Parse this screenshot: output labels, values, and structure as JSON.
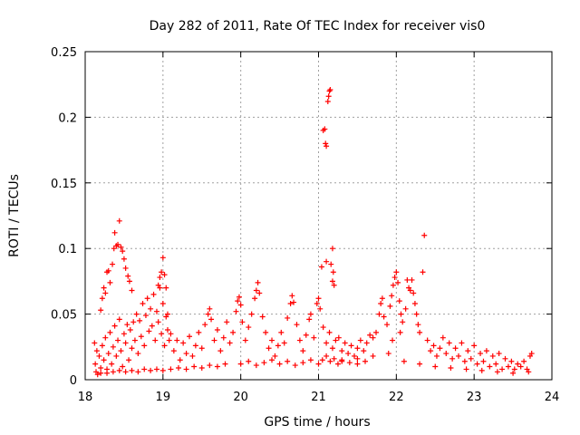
{
  "chart_data": {
    "type": "scatter",
    "title": "Day 282 of 2011, Rate Of TEC Index for receiver vis0",
    "xlabel": "GPS time / hours",
    "ylabel": "ROTI / TECUs",
    "xlim": [
      18,
      24
    ],
    "ylim": [
      0,
      0.25
    ],
    "grid": true,
    "marker": "+",
    "colors": {
      "points": "#ff0000",
      "grid": "#a0a0a0",
      "axis": "#000000"
    },
    "x_ticks": [
      "18",
      "19",
      "20",
      "21",
      "22",
      "23",
      "24"
    ],
    "y_ticks": [
      "0",
      "0.05",
      "0.1",
      "0.15",
      "0.2",
      "0.25"
    ],
    "series": [
      {
        "name": "vis0",
        "points": [
          [
            18.12,
            0.028
          ],
          [
            18.13,
            0.012
          ],
          [
            18.15,
            0.022
          ],
          [
            18.16,
            0.004
          ],
          [
            18.18,
            0.018
          ],
          [
            18.2,
            0.009
          ],
          [
            18.22,
            0.026
          ],
          [
            18.24,
            0.015
          ],
          [
            18.26,
            0.032
          ],
          [
            18.28,
            0.008
          ],
          [
            18.3,
            0.02
          ],
          [
            18.32,
            0.036
          ],
          [
            18.34,
            0.012
          ],
          [
            18.36,
            0.025
          ],
          [
            18.38,
            0.041
          ],
          [
            18.4,
            0.018
          ],
          [
            18.42,
            0.03
          ],
          [
            18.44,
            0.046
          ],
          [
            18.46,
            0.022
          ],
          [
            18.48,
            0.01
          ],
          [
            18.5,
            0.035
          ],
          [
            18.52,
            0.028
          ],
          [
            18.54,
            0.042
          ],
          [
            18.56,
            0.015
          ],
          [
            18.58,
            0.038
          ],
          [
            18.6,
            0.024
          ],
          [
            18.62,
            0.044
          ],
          [
            18.64,
            0.03
          ],
          [
            18.66,
            0.05
          ],
          [
            18.68,
            0.02
          ],
          [
            18.7,
            0.045
          ],
          [
            18.72,
            0.033
          ],
          [
            18.74,
            0.058
          ],
          [
            18.76,
            0.026
          ],
          [
            18.78,
            0.049
          ],
          [
            18.8,
            0.062
          ],
          [
            18.82,
            0.037
          ],
          [
            18.84,
            0.054
          ],
          [
            18.86,
            0.041
          ],
          [
            18.88,
            0.065
          ],
          [
            18.9,
            0.03
          ],
          [
            18.92,
            0.052
          ],
          [
            18.94,
            0.044
          ],
          [
            18.96,
            0.07
          ],
          [
            18.98,
            0.035
          ],
          [
            19.0,
            0.058
          ],
          [
            19.02,
            0.026
          ],
          [
            19.04,
            0.048
          ],
          [
            19.06,
            0.038
          ],
          [
            19.08,
            0.03
          ],
          [
            18.2,
            0.053
          ],
          [
            18.22,
            0.062
          ],
          [
            18.24,
            0.07
          ],
          [
            18.26,
            0.066
          ],
          [
            18.28,
            0.082
          ],
          [
            18.3,
            0.083
          ],
          [
            18.32,
            0.074
          ],
          [
            18.35,
            0.088
          ],
          [
            18.37,
            0.1
          ],
          [
            18.38,
            0.112
          ],
          [
            18.4,
            0.102
          ],
          [
            18.42,
            0.103
          ],
          [
            18.44,
            0.121
          ],
          [
            18.46,
            0.101
          ],
          [
            18.48,
            0.098
          ],
          [
            18.5,
            0.092
          ],
          [
            18.52,
            0.085
          ],
          [
            18.55,
            0.079
          ],
          [
            18.57,
            0.075
          ],
          [
            18.6,
            0.068
          ],
          [
            18.94,
            0.072
          ],
          [
            18.96,
            0.078
          ],
          [
            18.98,
            0.082
          ],
          [
            19.0,
            0.093
          ],
          [
            19.02,
            0.08
          ],
          [
            19.04,
            0.07
          ],
          [
            19.06,
            0.05
          ],
          [
            18.14,
            0.006
          ],
          [
            18.2,
            0.005
          ],
          [
            18.28,
            0.005
          ],
          [
            18.36,
            0.006
          ],
          [
            18.44,
            0.007
          ],
          [
            18.52,
            0.006
          ],
          [
            18.6,
            0.007
          ],
          [
            18.68,
            0.006
          ],
          [
            18.76,
            0.008
          ],
          [
            18.84,
            0.007
          ],
          [
            18.92,
            0.008
          ],
          [
            19.0,
            0.007
          ],
          [
            19.1,
            0.008
          ],
          [
            19.2,
            0.009
          ],
          [
            19.3,
            0.008
          ],
          [
            19.4,
            0.01
          ],
          [
            19.5,
            0.009
          ],
          [
            19.6,
            0.011
          ],
          [
            19.7,
            0.01
          ],
          [
            19.8,
            0.012
          ],
          [
            19.1,
            0.035
          ],
          [
            19.14,
            0.022
          ],
          [
            19.18,
            0.03
          ],
          [
            19.22,
            0.015
          ],
          [
            19.26,
            0.028
          ],
          [
            19.3,
            0.02
          ],
          [
            19.34,
            0.033
          ],
          [
            19.38,
            0.018
          ],
          [
            19.42,
            0.026
          ],
          [
            19.46,
            0.036
          ],
          [
            19.5,
            0.024
          ],
          [
            19.54,
            0.042
          ],
          [
            19.58,
            0.05
          ],
          [
            19.6,
            0.054
          ],
          [
            19.62,
            0.046
          ],
          [
            19.66,
            0.03
          ],
          [
            19.7,
            0.038
          ],
          [
            19.74,
            0.022
          ],
          [
            19.78,
            0.032
          ],
          [
            19.82,
            0.044
          ],
          [
            19.86,
            0.028
          ],
          [
            19.9,
            0.036
          ],
          [
            19.94,
            0.052
          ],
          [
            19.96,
            0.06
          ],
          [
            19.98,
            0.063
          ],
          [
            20.0,
            0.057
          ],
          [
            20.02,
            0.044
          ],
          [
            20.06,
            0.03
          ],
          [
            20.1,
            0.04
          ],
          [
            20.14,
            0.05
          ],
          [
            20.18,
            0.062
          ],
          [
            20.2,
            0.068
          ],
          [
            20.22,
            0.074
          ],
          [
            20.24,
            0.066
          ],
          [
            20.28,
            0.048
          ],
          [
            20.32,
            0.036
          ],
          [
            20.36,
            0.024
          ],
          [
            20.4,
            0.03
          ],
          [
            20.44,
            0.018
          ],
          [
            20.48,
            0.026
          ],
          [
            20.52,
            0.036
          ],
          [
            20.56,
            0.028
          ],
          [
            20.6,
            0.047
          ],
          [
            20.64,
            0.058
          ],
          [
            20.66,
            0.064
          ],
          [
            20.68,
            0.059
          ],
          [
            20.72,
            0.042
          ],
          [
            20.76,
            0.03
          ],
          [
            20.8,
            0.022
          ],
          [
            20.84,
            0.034
          ],
          [
            20.88,
            0.046
          ],
          [
            20.9,
            0.05
          ],
          [
            20.94,
            0.032
          ],
          [
            20.98,
            0.058
          ],
          [
            21.0,
            0.062
          ],
          [
            21.02,
            0.054
          ],
          [
            21.06,
            0.04
          ],
          [
            21.1,
            0.028
          ],
          [
            21.14,
            0.036
          ],
          [
            21.18,
            0.024
          ],
          [
            21.22,
            0.03
          ],
          [
            21.26,
            0.032
          ],
          [
            21.3,
            0.022
          ],
          [
            21.34,
            0.028
          ],
          [
            21.38,
            0.02
          ],
          [
            21.42,
            0.026
          ],
          [
            21.46,
            0.018
          ],
          [
            21.5,
            0.024
          ],
          [
            21.54,
            0.03
          ],
          [
            21.58,
            0.022
          ],
          [
            21.62,
            0.028
          ],
          [
            21.66,
            0.034
          ],
          [
            21.7,
            0.032
          ],
          [
            21.74,
            0.036
          ],
          [
            21.78,
            0.05
          ],
          [
            21.8,
            0.058
          ],
          [
            21.82,
            0.062
          ],
          [
            21.84,
            0.048
          ],
          [
            21.88,
            0.042
          ],
          [
            21.92,
            0.056
          ],
          [
            21.94,
            0.064
          ],
          [
            21.96,
            0.072
          ],
          [
            21.98,
            0.078
          ],
          [
            22.0,
            0.082
          ],
          [
            22.02,
            0.074
          ],
          [
            22.04,
            0.06
          ],
          [
            22.06,
            0.05
          ],
          [
            22.08,
            0.044
          ],
          [
            22.12,
            0.054
          ],
          [
            22.16,
            0.07
          ],
          [
            22.18,
            0.068
          ],
          [
            22.2,
            0.076
          ],
          [
            22.22,
            0.066
          ],
          [
            22.24,
            0.058
          ],
          [
            22.26,
            0.05
          ],
          [
            22.28,
            0.042
          ],
          [
            22.3,
            0.036
          ],
          [
            22.34,
            0.082
          ],
          [
            22.36,
            0.11
          ],
          [
            22.14,
            0.076
          ],
          [
            21.06,
            0.19
          ],
          [
            21.08,
            0.191
          ],
          [
            21.09,
            0.18
          ],
          [
            21.1,
            0.178
          ],
          [
            21.12,
            0.212
          ],
          [
            21.13,
            0.216
          ],
          [
            21.14,
            0.22
          ],
          [
            21.15,
            0.221
          ],
          [
            21.04,
            0.086
          ],
          [
            21.16,
            0.088
          ],
          [
            21.18,
            0.1
          ],
          [
            21.19,
            0.082
          ],
          [
            21.2,
            0.072
          ],
          [
            21.18,
            0.075
          ],
          [
            21.1,
            0.09
          ],
          [
            21.0,
            0.012
          ],
          [
            21.05,
            0.015
          ],
          [
            21.1,
            0.018
          ],
          [
            21.15,
            0.014
          ],
          [
            21.2,
            0.016
          ],
          [
            21.25,
            0.012
          ],
          [
            21.3,
            0.014
          ],
          [
            21.4,
            0.013
          ],
          [
            21.5,
            0.012
          ],
          [
            21.6,
            0.014
          ],
          [
            20.0,
            0.012
          ],
          [
            20.1,
            0.014
          ],
          [
            20.2,
            0.011
          ],
          [
            20.3,
            0.013
          ],
          [
            20.4,
            0.015
          ],
          [
            20.5,
            0.012
          ],
          [
            20.6,
            0.014
          ],
          [
            20.7,
            0.011
          ],
          [
            20.8,
            0.013
          ],
          [
            20.9,
            0.015
          ],
          [
            22.4,
            0.03
          ],
          [
            22.44,
            0.022
          ],
          [
            22.48,
            0.026
          ],
          [
            22.52,
            0.018
          ],
          [
            22.56,
            0.024
          ],
          [
            22.6,
            0.032
          ],
          [
            22.64,
            0.02
          ],
          [
            22.68,
            0.028
          ],
          [
            22.72,
            0.016
          ],
          [
            22.76,
            0.024
          ],
          [
            22.8,
            0.018
          ],
          [
            22.84,
            0.028
          ],
          [
            22.88,
            0.014
          ],
          [
            22.92,
            0.022
          ],
          [
            22.96,
            0.016
          ],
          [
            23.0,
            0.026
          ],
          [
            23.04,
            0.012
          ],
          [
            23.08,
            0.02
          ],
          [
            23.12,
            0.014
          ],
          [
            23.16,
            0.022
          ],
          [
            23.2,
            0.01
          ],
          [
            23.24,
            0.018
          ],
          [
            23.28,
            0.012
          ],
          [
            23.32,
            0.02
          ],
          [
            23.36,
            0.008
          ],
          [
            23.4,
            0.016
          ],
          [
            23.44,
            0.01
          ],
          [
            23.48,
            0.014
          ],
          [
            23.52,
            0.008
          ],
          [
            23.56,
            0.012
          ],
          [
            23.6,
            0.01
          ],
          [
            23.64,
            0.014
          ],
          [
            23.68,
            0.008
          ],
          [
            23.72,
            0.018
          ],
          [
            23.74,
            0.02
          ],
          [
            23.7,
            0.006
          ],
          [
            23.5,
            0.005
          ],
          [
            23.3,
            0.006
          ],
          [
            23.1,
            0.007
          ],
          [
            22.9,
            0.008
          ],
          [
            22.7,
            0.009
          ],
          [
            22.5,
            0.01
          ],
          [
            22.3,
            0.012
          ],
          [
            22.1,
            0.014
          ],
          [
            21.9,
            0.02
          ],
          [
            21.7,
            0.018
          ],
          [
            21.5,
            0.016
          ],
          [
            21.3,
            0.015
          ],
          [
            21.95,
            0.03
          ],
          [
            22.05,
            0.036
          ]
        ]
      }
    ]
  }
}
